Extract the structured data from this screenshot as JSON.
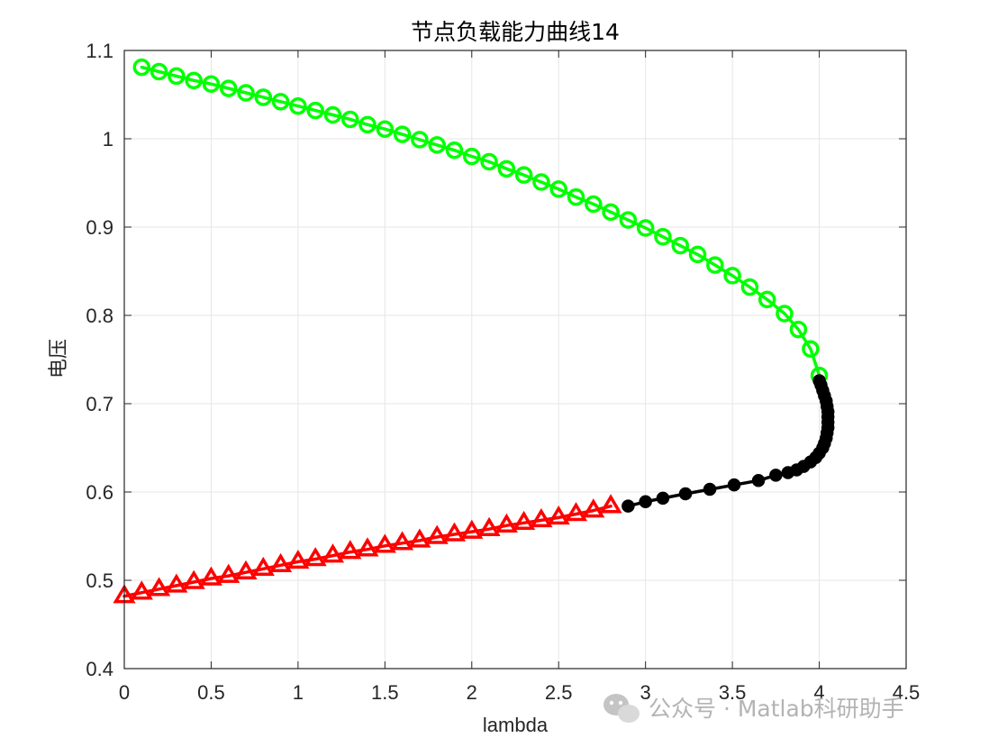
{
  "chart_data": {
    "type": "line",
    "title": "节点负载能力曲线14",
    "xlabel": "lambda",
    "ylabel": "电压",
    "xlim": [
      0,
      4.5
    ],
    "ylim": [
      0.4,
      1.1
    ],
    "xticks": [
      0,
      0.5,
      1,
      1.5,
      2,
      2.5,
      3,
      3.5,
      4,
      4.5
    ],
    "xtick_labels": [
      "0",
      "0.5",
      "1",
      "1.5",
      "2",
      "2.5",
      "3",
      "3.5",
      "4",
      "4.5"
    ],
    "yticks": [
      0.4,
      0.5,
      0.6,
      0.7,
      0.8,
      0.9,
      1.0,
      1.1
    ],
    "ytick_labels": [
      "0.4",
      "0.5",
      "0.6",
      "0.7",
      "0.8",
      "0.9",
      "1",
      "1.1"
    ],
    "grid": true,
    "legend": "none",
    "series": [
      {
        "color": "#00ff00",
        "marker": "circle",
        "points": [
          [
            0.1,
            1.081
          ],
          [
            0.2,
            1.076
          ],
          [
            0.3,
            1.071
          ],
          [
            0.4,
            1.066
          ],
          [
            0.5,
            1.062
          ],
          [
            0.6,
            1.057
          ],
          [
            0.7,
            1.052
          ],
          [
            0.8,
            1.047
          ],
          [
            0.9,
            1.042
          ],
          [
            1.0,
            1.037
          ],
          [
            1.1,
            1.032
          ],
          [
            1.2,
            1.027
          ],
          [
            1.3,
            1.022
          ],
          [
            1.4,
            1.016
          ],
          [
            1.5,
            1.011
          ],
          [
            1.6,
            1.005
          ],
          [
            1.7,
            0.999
          ],
          [
            1.8,
            0.993
          ],
          [
            1.9,
            0.987
          ],
          [
            2.0,
            0.98
          ],
          [
            2.1,
            0.974
          ],
          [
            2.2,
            0.966
          ],
          [
            2.3,
            0.959
          ],
          [
            2.4,
            0.951
          ],
          [
            2.5,
            0.943
          ],
          [
            2.6,
            0.934
          ],
          [
            2.7,
            0.926
          ],
          [
            2.8,
            0.917
          ],
          [
            2.9,
            0.908
          ],
          [
            3.0,
            0.899
          ],
          [
            3.1,
            0.889
          ],
          [
            3.2,
            0.879
          ],
          [
            3.3,
            0.869
          ],
          [
            3.4,
            0.857
          ],
          [
            3.5,
            0.845
          ],
          [
            3.6,
            0.832
          ],
          [
            3.7,
            0.818
          ],
          [
            3.8,
            0.802
          ],
          [
            3.88,
            0.784
          ],
          [
            3.95,
            0.762
          ],
          [
            4.0,
            0.732
          ]
        ]
      },
      {
        "color": "#000000",
        "marker": "filled-circle",
        "points": [
          [
            4.0,
            0.726
          ],
          [
            4.01,
            0.721
          ],
          [
            4.02,
            0.715
          ],
          [
            4.03,
            0.709
          ],
          [
            4.04,
            0.703
          ],
          [
            4.045,
            0.697
          ],
          [
            4.05,
            0.691
          ],
          [
            4.05,
            0.685
          ],
          [
            4.05,
            0.679
          ],
          [
            4.05,
            0.673
          ],
          [
            4.045,
            0.667
          ],
          [
            4.04,
            0.661
          ],
          [
            4.03,
            0.655
          ],
          [
            4.02,
            0.65
          ],
          [
            4.0,
            0.644
          ],
          [
            3.98,
            0.639
          ],
          [
            3.95,
            0.634
          ],
          [
            3.91,
            0.629
          ],
          [
            3.87,
            0.625
          ],
          [
            3.82,
            0.622
          ],
          [
            3.75,
            0.619
          ],
          [
            3.65,
            0.613
          ],
          [
            3.51,
            0.608
          ],
          [
            3.37,
            0.603
          ],
          [
            3.23,
            0.598
          ],
          [
            3.1,
            0.593
          ],
          [
            3.0,
            0.589
          ],
          [
            2.9,
            0.584
          ]
        ]
      },
      {
        "color": "#ff0000",
        "marker": "triangle",
        "points": [
          [
            0.0,
            0.482
          ],
          [
            0.1,
            0.486
          ],
          [
            0.2,
            0.49
          ],
          [
            0.3,
            0.494
          ],
          [
            0.4,
            0.498
          ],
          [
            0.5,
            0.502
          ],
          [
            0.6,
            0.505
          ],
          [
            0.7,
            0.509
          ],
          [
            0.8,
            0.513
          ],
          [
            0.9,
            0.517
          ],
          [
            1.0,
            0.521
          ],
          [
            1.1,
            0.524
          ],
          [
            1.2,
            0.528
          ],
          [
            1.3,
            0.532
          ],
          [
            1.4,
            0.535
          ],
          [
            1.5,
            0.539
          ],
          [
            1.6,
            0.542
          ],
          [
            1.7,
            0.545
          ],
          [
            1.8,
            0.549
          ],
          [
            1.9,
            0.552
          ],
          [
            2.0,
            0.555
          ],
          [
            2.1,
            0.558
          ],
          [
            2.2,
            0.562
          ],
          [
            2.3,
            0.565
          ],
          [
            2.4,
            0.568
          ],
          [
            2.5,
            0.571
          ],
          [
            2.6,
            0.575
          ],
          [
            2.7,
            0.579
          ],
          [
            2.8,
            0.584
          ]
        ]
      }
    ]
  },
  "watermark": {
    "text": "公众号 · Matlab科研助手",
    "icon": "wechat-icon"
  }
}
